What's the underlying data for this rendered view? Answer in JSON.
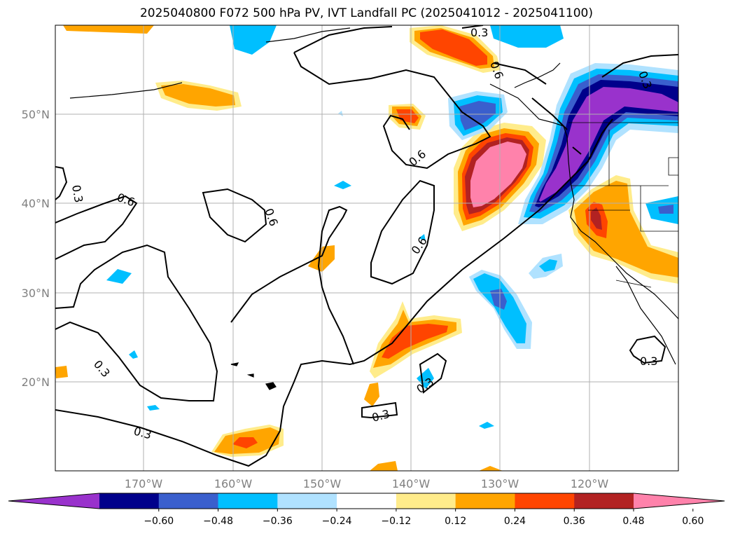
{
  "title": "2025040800 F072 500 hPa PV, IVT Landfall PC (2025041012 - 2025041100)",
  "map": {
    "lon_labels": [
      "170°W",
      "160°W",
      "150°W",
      "140°W",
      "130°W",
      "120°W"
    ],
    "lat_labels": [
      "50°N",
      "40°N",
      "30°N",
      "20°N"
    ],
    "contour_labels": [
      "0.3",
      "0.6",
      "0.6",
      "0.3",
      "0.6",
      "0.6",
      "0.3",
      "0.3",
      "0.3",
      "0.3",
      "0.3",
      "0.3",
      "0.6"
    ]
  },
  "colorbar": {
    "ticks": [
      "−0.60",
      "−0.48",
      "−0.36",
      "−0.24",
      "−0.12",
      "0.12",
      "0.24",
      "0.36",
      "0.48",
      "0.60"
    ],
    "colors": [
      "#9932cc",
      "#00008b",
      "#3a5fcd",
      "#00bfff",
      "#b0e2ff",
      "#ffffff",
      "#ffec8b",
      "#ffa500",
      "#ff4500",
      "#b22222",
      "#ff82ab"
    ]
  }
}
